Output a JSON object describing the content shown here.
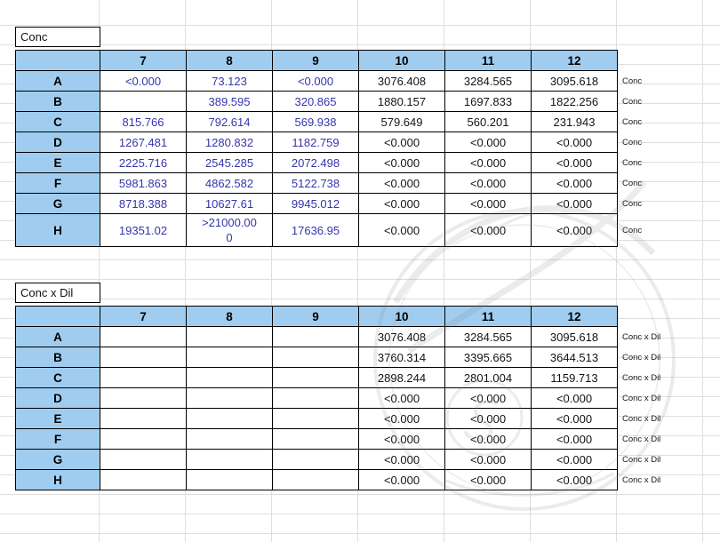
{
  "tables": [
    {
      "title": "Conc",
      "row_annotation": "Conc",
      "columns": [
        "7",
        "8",
        "9",
        "10",
        "11",
        "12"
      ],
      "rows": [
        {
          "label": "A",
          "values": [
            "<0.000",
            "73.123",
            "<0.000",
            "3076.408",
            "3284.565",
            "3095.618"
          ]
        },
        {
          "label": "B",
          "values": [
            "",
            "389.595",
            "320.865",
            "1880.157",
            "1697.833",
            "1822.256"
          ]
        },
        {
          "label": "C",
          "values": [
            "815.766",
            "792.614",
            "569.938",
            "579.649",
            "560.201",
            "231.943"
          ]
        },
        {
          "label": "D",
          "values": [
            "1267.481",
            "1280.832",
            "1182.759",
            "<0.000",
            "<0.000",
            "<0.000"
          ]
        },
        {
          "label": "E",
          "values": [
            "2225.716",
            "2545.285",
            "2072.498",
            "<0.000",
            "<0.000",
            "<0.000"
          ]
        },
        {
          "label": "F",
          "values": [
            "5981.863",
            "4862.582",
            "5122.738",
            "<0.000",
            "<0.000",
            "<0.000"
          ]
        },
        {
          "label": "G",
          "values": [
            "8718.388",
            "10627.61",
            "9945.012",
            "<0.000",
            "<0.000",
            "<0.000"
          ]
        },
        {
          "label": "H",
          "values": [
            "19351.02",
            ">21000.00\n0",
            "17636.95",
            "<0.000",
            "<0.000",
            "<0.000"
          ]
        }
      ]
    },
    {
      "title": "Conc x Dil",
      "row_annotation": "Conc x Dil",
      "columns": [
        "7",
        "8",
        "9",
        "10",
        "11",
        "12"
      ],
      "rows": [
        {
          "label": "A",
          "values": [
            "",
            "",
            "",
            "3076.408",
            "3284.565",
            "3095.618"
          ]
        },
        {
          "label": "B",
          "values": [
            "",
            "",
            "",
            "3760.314",
            "3395.665",
            "3644.513"
          ]
        },
        {
          "label": "C",
          "values": [
            "",
            "",
            "",
            "2898.244",
            "2801.004",
            "1159.713"
          ]
        },
        {
          "label": "D",
          "values": [
            "",
            "",
            "",
            "<0.000",
            "<0.000",
            "<0.000"
          ]
        },
        {
          "label": "E",
          "values": [
            "",
            "",
            "",
            "<0.000",
            "<0.000",
            "<0.000"
          ]
        },
        {
          "label": "F",
          "values": [
            "",
            "",
            "",
            "<0.000",
            "<0.000",
            "<0.000"
          ]
        },
        {
          "label": "G",
          "values": [
            "",
            "",
            "",
            "<0.000",
            "<0.000",
            "<0.000"
          ]
        },
        {
          "label": "H",
          "values": [
            "",
            "",
            "",
            "<0.000",
            "<0.000",
            "<0.000"
          ]
        }
      ]
    }
  ],
  "colors": {
    "header_blue": "#a0cdef",
    "value_blue": "#3535ad",
    "border": "#000000",
    "gridline": "#dedede"
  }
}
